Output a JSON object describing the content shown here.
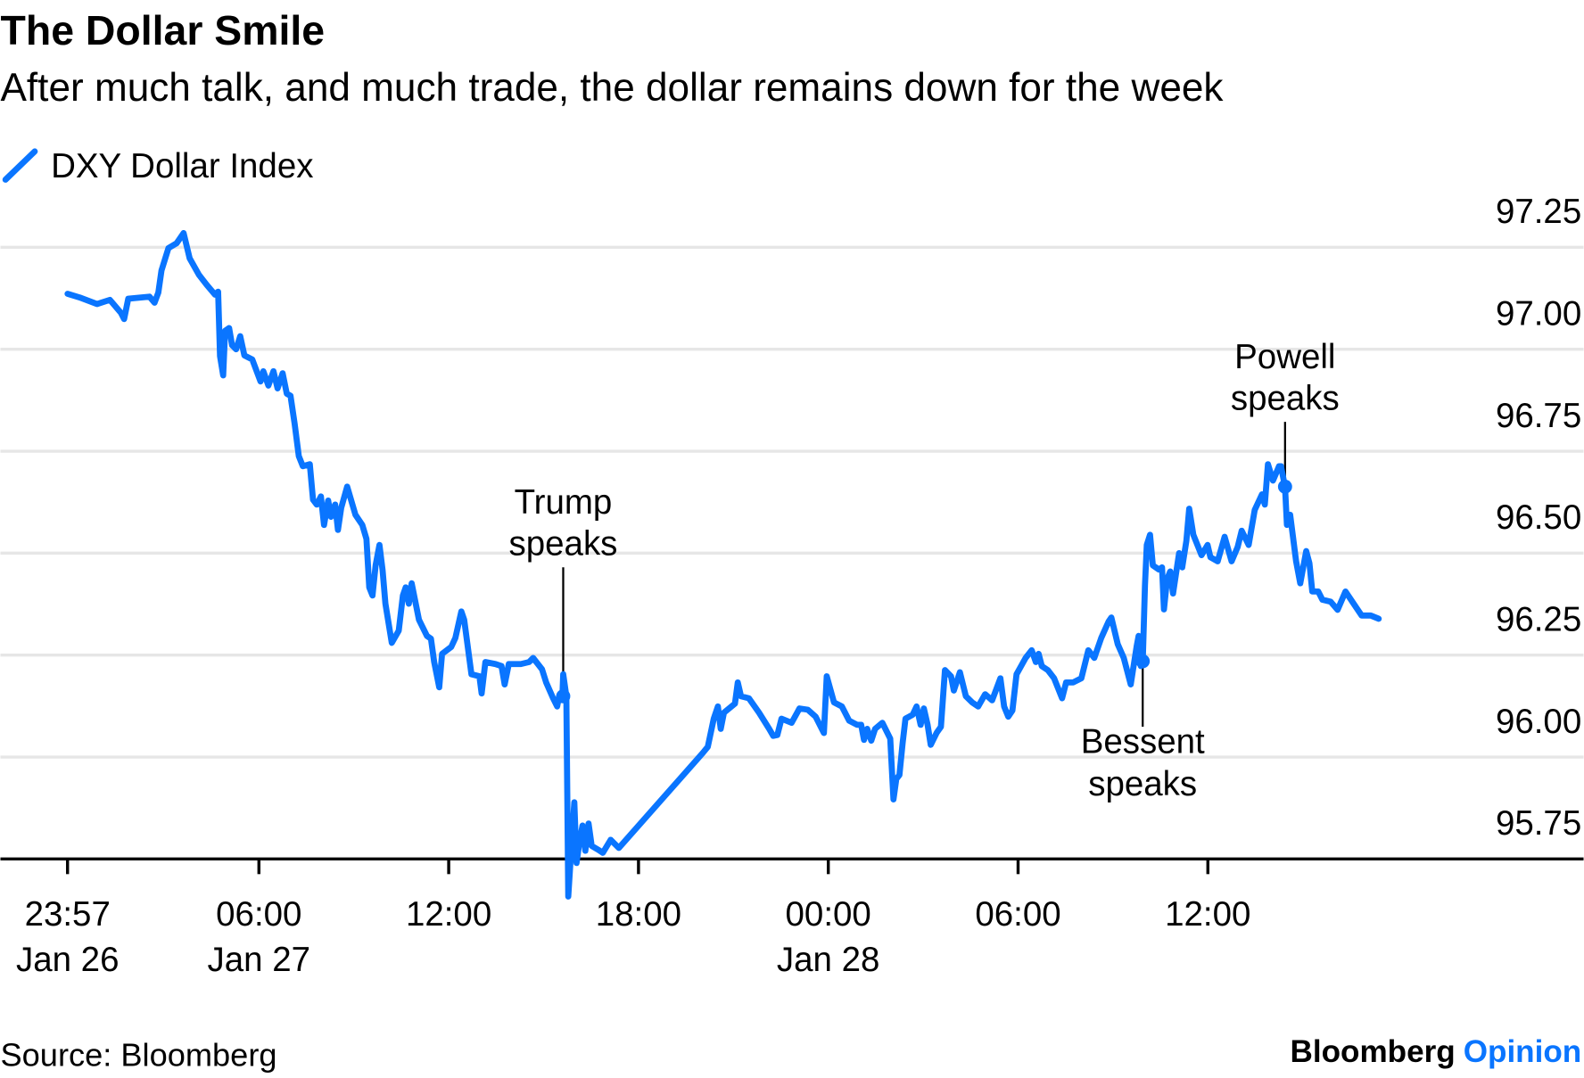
{
  "title": "The Dollar Smile",
  "subtitle": "After much talk, and much trade, the dollar remains down for the week",
  "source": "Source: Bloomberg",
  "brand": {
    "name": "Bloomberg",
    "section": "Opinion"
  },
  "colors": {
    "series": "#0a75ff",
    "grid": "#e6e6e6",
    "brand_accent": "#0a75ff"
  },
  "chart_data": {
    "type": "line",
    "title": "The Dollar Smile",
    "xlabel": "",
    "ylabel": "",
    "x_units": "hours since 00:00 Jan 27",
    "ylim": [
      95.75,
      97.25
    ],
    "grid": true,
    "legend_placement": "top-left",
    "y_ticks": [
      {
        "value": 97.25,
        "label": "97.25"
      },
      {
        "value": 97.0,
        "label": "97.00"
      },
      {
        "value": 96.75,
        "label": "96.75"
      },
      {
        "value": 96.5,
        "label": "96.50"
      },
      {
        "value": 96.25,
        "label": "96.25"
      },
      {
        "value": 96.0,
        "label": "96.00"
      },
      {
        "value": 95.75,
        "label": "95.75"
      }
    ],
    "x_ticks": [
      {
        "value": -0.05,
        "line1": "23:57",
        "line2": "Jan 26"
      },
      {
        "value": 6,
        "line1": "06:00",
        "line2": "Jan 27"
      },
      {
        "value": 12,
        "line1": "12:00",
        "line2": ""
      },
      {
        "value": 18,
        "line1": "18:00",
        "line2": ""
      },
      {
        "value": 24,
        "line1": "00:00",
        "line2": "Jan 28"
      },
      {
        "value": 30,
        "line1": "06:00",
        "line2": ""
      },
      {
        "value": 36,
        "line1": "12:00",
        "line2": ""
      }
    ],
    "series": [
      {
        "name": "DXY Dollar Index",
        "points": [
          [
            -0.05,
            97.136
          ],
          [
            0.33,
            97.127
          ],
          [
            0.88,
            97.111
          ],
          [
            1.29,
            97.121
          ],
          [
            1.64,
            97.089
          ],
          [
            1.74,
            97.074
          ],
          [
            1.87,
            97.124
          ],
          [
            2.54,
            97.129
          ],
          [
            2.7,
            97.114
          ],
          [
            2.82,
            97.139
          ],
          [
            2.92,
            97.193
          ],
          [
            3.14,
            97.248
          ],
          [
            3.4,
            97.26
          ],
          [
            3.62,
            97.285
          ],
          [
            3.81,
            97.223
          ],
          [
            4.1,
            97.183
          ],
          [
            4.35,
            97.158
          ],
          [
            4.61,
            97.134
          ],
          [
            4.71,
            97.141
          ],
          [
            4.77,
            96.983
          ],
          [
            4.87,
            96.936
          ],
          [
            4.93,
            97.045
          ],
          [
            5.06,
            97.052
          ],
          [
            5.15,
            97.01
          ],
          [
            5.28,
            97.0
          ],
          [
            5.41,
            97.032
          ],
          [
            5.54,
            96.985
          ],
          [
            5.79,
            96.975
          ],
          [
            6.05,
            96.921
          ],
          [
            6.14,
            96.946
          ],
          [
            6.3,
            96.911
          ],
          [
            6.46,
            96.946
          ],
          [
            6.59,
            96.904
          ],
          [
            6.75,
            96.941
          ],
          [
            6.88,
            96.891
          ],
          [
            7.0,
            96.886
          ],
          [
            7.13,
            96.817
          ],
          [
            7.26,
            96.738
          ],
          [
            7.39,
            96.713
          ],
          [
            7.61,
            96.718
          ],
          [
            7.71,
            96.631
          ],
          [
            7.83,
            96.619
          ],
          [
            7.96,
            96.639
          ],
          [
            8.06,
            96.569
          ],
          [
            8.19,
            96.629
          ],
          [
            8.28,
            96.589
          ],
          [
            8.41,
            96.619
          ],
          [
            8.5,
            96.557
          ],
          [
            8.6,
            96.611
          ],
          [
            8.79,
            96.663
          ],
          [
            9.05,
            96.594
          ],
          [
            9.27,
            96.569
          ],
          [
            9.4,
            96.535
          ],
          [
            9.49,
            96.416
          ],
          [
            9.59,
            96.396
          ],
          [
            9.69,
            96.47
          ],
          [
            9.81,
            96.52
          ],
          [
            9.91,
            96.458
          ],
          [
            10.0,
            96.376
          ],
          [
            10.2,
            96.28
          ],
          [
            10.42,
            96.31
          ],
          [
            10.55,
            96.396
          ],
          [
            10.64,
            96.416
          ],
          [
            10.74,
            96.376
          ],
          [
            10.83,
            96.426
          ],
          [
            11.06,
            96.337
          ],
          [
            11.31,
            96.297
          ],
          [
            11.44,
            96.29
          ],
          [
            11.54,
            96.233
          ],
          [
            11.7,
            96.171
          ],
          [
            11.79,
            96.253
          ],
          [
            12.08,
            96.27
          ],
          [
            12.21,
            96.292
          ],
          [
            12.4,
            96.357
          ],
          [
            12.49,
            96.337
          ],
          [
            12.72,
            96.203
          ],
          [
            12.97,
            96.198
          ],
          [
            13.04,
            96.156
          ],
          [
            13.16,
            96.233
          ],
          [
            13.48,
            96.228
          ],
          [
            13.67,
            96.223
          ],
          [
            13.77,
            96.178
          ],
          [
            13.9,
            96.228
          ],
          [
            14.28,
            96.228
          ],
          [
            14.54,
            96.233
          ],
          [
            14.67,
            96.243
          ],
          [
            14.95,
            96.215
          ],
          [
            15.08,
            96.183
          ],
          [
            15.3,
            96.144
          ],
          [
            15.43,
            96.124
          ],
          [
            15.49,
            96.149
          ],
          [
            15.59,
            96.144
          ],
          [
            15.62,
            96.203
          ],
          [
            15.72,
            96.149
          ],
          [
            15.78,
            95.658
          ],
          [
            15.91,
            95.819
          ],
          [
            15.97,
            95.889
          ],
          [
            16.04,
            95.74
          ],
          [
            16.13,
            95.79
          ],
          [
            16.23,
            95.832
          ],
          [
            16.32,
            95.77
          ],
          [
            16.42,
            95.837
          ],
          [
            16.52,
            95.782
          ],
          [
            16.74,
            95.772
          ],
          [
            16.87,
            95.765
          ],
          [
            17.12,
            95.797
          ],
          [
            17.38,
            95.777
          ],
          [
            20.03,
            96.01
          ],
          [
            20.19,
            96.025
          ],
          [
            20.38,
            96.094
          ],
          [
            20.51,
            96.124
          ],
          [
            20.6,
            96.069
          ],
          [
            20.7,
            96.109
          ],
          [
            21.05,
            96.131
          ],
          [
            21.14,
            96.183
          ],
          [
            21.24,
            96.149
          ],
          [
            21.49,
            96.144
          ],
          [
            21.81,
            96.109
          ],
          [
            22.13,
            96.069
          ],
          [
            22.26,
            96.052
          ],
          [
            22.39,
            96.054
          ],
          [
            22.52,
            96.094
          ],
          [
            22.84,
            96.084
          ],
          [
            23.09,
            96.119
          ],
          [
            23.35,
            96.116
          ],
          [
            23.6,
            96.099
          ],
          [
            23.86,
            96.059
          ],
          [
            23.95,
            96.198
          ],
          [
            24.18,
            96.134
          ],
          [
            24.43,
            96.124
          ],
          [
            24.66,
            96.089
          ],
          [
            24.91,
            96.079
          ],
          [
            25.04,
            96.079
          ],
          [
            25.13,
            96.042
          ],
          [
            25.23,
            96.069
          ],
          [
            25.36,
            96.04
          ],
          [
            25.48,
            96.069
          ],
          [
            25.71,
            96.084
          ],
          [
            25.96,
            96.045
          ],
          [
            26.06,
            95.896
          ],
          [
            26.15,
            95.946
          ],
          [
            26.25,
            95.956
          ],
          [
            26.35,
            96.035
          ],
          [
            26.44,
            96.094
          ],
          [
            26.67,
            96.104
          ],
          [
            26.79,
            96.124
          ],
          [
            26.92,
            96.079
          ],
          [
            27.02,
            96.119
          ],
          [
            27.14,
            96.079
          ],
          [
            27.24,
            96.03
          ],
          [
            27.43,
            96.06
          ],
          [
            27.56,
            96.074
          ],
          [
            27.69,
            96.213
          ],
          [
            27.88,
            96.198
          ],
          [
            27.97,
            96.163
          ],
          [
            28.16,
            96.208
          ],
          [
            28.35,
            96.149
          ],
          [
            28.55,
            96.134
          ],
          [
            28.74,
            96.124
          ],
          [
            28.96,
            96.154
          ],
          [
            29.18,
            96.139
          ],
          [
            29.44,
            96.193
          ],
          [
            29.56,
            96.124
          ],
          [
            29.69,
            96.099
          ],
          [
            29.82,
            96.114
          ],
          [
            29.95,
            96.203
          ],
          [
            30.24,
            96.243
          ],
          [
            30.43,
            96.262
          ],
          [
            30.56,
            96.233
          ],
          [
            30.65,
            96.253
          ],
          [
            30.75,
            96.223
          ],
          [
            30.94,
            96.213
          ],
          [
            31.14,
            96.193
          ],
          [
            31.39,
            96.144
          ],
          [
            31.52,
            96.183
          ],
          [
            31.74,
            96.183
          ],
          [
            32.0,
            96.193
          ],
          [
            32.22,
            96.262
          ],
          [
            32.41,
            96.243
          ],
          [
            32.63,
            96.292
          ],
          [
            32.86,
            96.332
          ],
          [
            32.95,
            96.342
          ],
          [
            33.15,
            96.277
          ],
          [
            33.34,
            96.243
          ],
          [
            33.56,
            96.178
          ],
          [
            33.75,
            96.272
          ],
          [
            33.81,
            96.297
          ],
          [
            33.88,
            96.223
          ],
          [
            33.94,
            96.235
          ],
          [
            34.01,
            96.421
          ],
          [
            34.07,
            96.52
          ],
          [
            34.17,
            96.545
          ],
          [
            34.26,
            96.47
          ],
          [
            34.45,
            96.46
          ],
          [
            34.55,
            96.465
          ],
          [
            34.61,
            96.362
          ],
          [
            34.71,
            96.436
          ],
          [
            34.81,
            96.455
          ],
          [
            34.9,
            96.401
          ],
          [
            35.09,
            96.5
          ],
          [
            35.19,
            96.465
          ],
          [
            35.32,
            96.53
          ],
          [
            35.41,
            96.609
          ],
          [
            35.54,
            96.545
          ],
          [
            35.8,
            96.495
          ],
          [
            35.99,
            96.52
          ],
          [
            36.08,
            96.49
          ],
          [
            36.31,
            96.48
          ],
          [
            36.53,
            96.54
          ],
          [
            36.75,
            96.48
          ],
          [
            36.94,
            96.515
          ],
          [
            37.07,
            96.555
          ],
          [
            37.29,
            96.52
          ],
          [
            37.48,
            96.606
          ],
          [
            37.71,
            96.644
          ],
          [
            37.8,
            96.619
          ],
          [
            37.9,
            96.718
          ],
          [
            38.06,
            96.678
          ],
          [
            38.25,
            96.713
          ],
          [
            38.31,
            96.713
          ],
          [
            38.44,
            96.663
          ],
          [
            38.5,
            96.569
          ],
          [
            38.6,
            96.594
          ],
          [
            38.79,
            96.48
          ],
          [
            38.92,
            96.426
          ],
          [
            39.11,
            96.505
          ],
          [
            39.21,
            96.475
          ],
          [
            39.3,
            96.406
          ],
          [
            39.49,
            96.406
          ],
          [
            39.62,
            96.386
          ],
          [
            39.88,
            96.381
          ],
          [
            40.1,
            96.361
          ],
          [
            40.35,
            96.406
          ],
          [
            40.61,
            96.376
          ],
          [
            40.86,
            96.347
          ],
          [
            41.15,
            96.347
          ],
          [
            41.4,
            96.339
          ]
        ]
      }
    ],
    "annotations": [
      {
        "id": "trump",
        "line1": "Trump",
        "line2": "speaks",
        "x": 15.62,
        "y": 96.149,
        "position": "above"
      },
      {
        "id": "bessent",
        "line1": "Bessent",
        "line2": "speaks",
        "x": 33.94,
        "y": 96.235,
        "position": "below"
      },
      {
        "id": "powell",
        "line1": "Powell",
        "line2": "speaks",
        "x": 38.44,
        "y": 96.663,
        "position": "above"
      }
    ]
  }
}
